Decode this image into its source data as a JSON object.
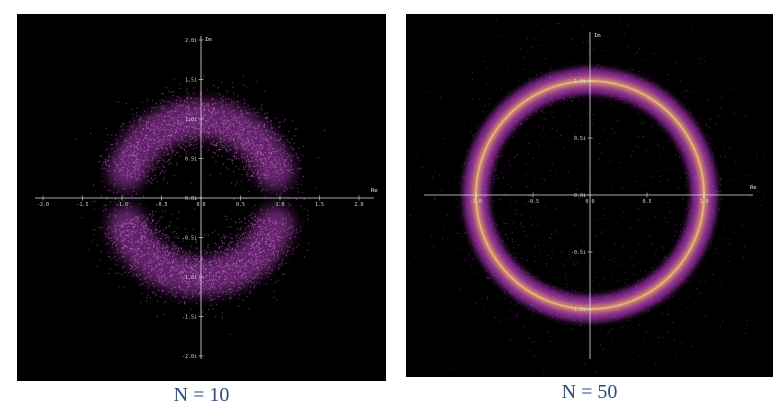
{
  "chart_data": [
    {
      "type": "scatter",
      "caption": "N = 10",
      "xlabel": "Re",
      "ylabel": "Im",
      "xlim": [
        -2.0,
        2.0
      ],
      "ylim": [
        -2.0,
        2.0
      ],
      "x_ticks": [
        "-2.0",
        "-1.5",
        "-1.0",
        "-0.5",
        "0.0",
        "0.5",
        "1.0",
        "1.5",
        "2.0"
      ],
      "x_tick_values": [
        -2.0,
        -1.5,
        -1.0,
        -0.5,
        0.0,
        0.5,
        1.0,
        1.5,
        2.0
      ],
      "y_ticks": [
        "2.0i",
        "1.5i",
        "1.0i",
        "0.5i",
        "0.0i",
        "-0.5i",
        "-1.0i",
        "-1.5i",
        "-2.0i"
      ],
      "y_tick_values": [
        2.0,
        1.5,
        1.0,
        0.5,
        0.0,
        -0.5,
        -1.0,
        -1.5,
        -2.0
      ],
      "distribution": {
        "shape": "annulus",
        "center": [
          0,
          0
        ],
        "radius": 1.0,
        "spread": 0.2,
        "gap_near_real_axis": true
      },
      "colors": {
        "background": "#000000",
        "points": "#b040c0",
        "dense": "#d070d0"
      }
    },
    {
      "type": "scatter",
      "caption": "N = 50",
      "xlabel": "Re",
      "ylabel": "Im",
      "xlim": [
        -1.5,
        1.5
      ],
      "ylim": [
        -1.5,
        1.5
      ],
      "x_ticks": [
        "-1.0",
        "-0.5",
        "0.0",
        "0.5",
        "1.0"
      ],
      "x_tick_values": [
        -1.0,
        -0.5,
        0.0,
        0.5,
        1.0
      ],
      "y_ticks": [
        "1.0i",
        "0.5i",
        "0.0i",
        "-0.5i",
        "-1.0i"
      ],
      "y_tick_values": [
        1.0,
        0.5,
        0.0,
        -0.5,
        -1.0
      ],
      "distribution": {
        "shape": "annulus",
        "center": [
          0,
          0
        ],
        "radius": 1.0,
        "spread": 0.06,
        "gap_near_real_axis": false
      },
      "colors": {
        "background": "#000000",
        "points": "#a030b0",
        "ring_core": "#e8a860"
      }
    }
  ]
}
